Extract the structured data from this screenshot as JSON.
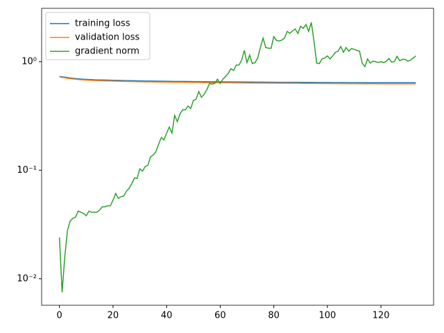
{
  "chart_data": {
    "type": "line",
    "log_y": true,
    "legend": "upper left",
    "x": [
      0,
      1,
      2,
      3,
      4,
      5,
      6,
      7,
      8,
      9,
      10,
      11,
      12,
      13,
      14,
      15,
      16,
      17,
      18,
      19,
      20,
      21,
      22,
      23,
      24,
      25,
      26,
      27,
      28,
      29,
      30,
      31,
      32,
      33,
      34,
      35,
      36,
      37,
      38,
      39,
      40,
      41,
      42,
      43,
      44,
      45,
      46,
      47,
      48,
      49,
      50,
      51,
      52,
      53,
      54,
      55,
      56,
      57,
      58,
      59,
      60,
      61,
      62,
      63,
      64,
      65,
      66,
      67,
      68,
      69,
      70,
      71,
      72,
      73,
      74,
      75,
      76,
      77,
      78,
      79,
      80,
      81,
      82,
      83,
      84,
      85,
      86,
      87,
      88,
      89,
      90,
      91,
      92,
      93,
      94,
      95,
      96,
      97,
      98,
      99,
      100,
      101,
      102,
      103,
      104,
      105,
      106,
      107,
      108,
      109,
      110,
      111,
      112,
      113,
      114,
      115,
      116,
      117,
      118,
      119,
      120,
      121,
      122,
      123,
      124,
      125,
      126,
      127,
      128,
      129,
      130,
      131,
      132,
      133
    ],
    "series": [
      {
        "name": "training loss",
        "color": "#1f77b4",
        "values": [
          0.73,
          0.725,
          0.72,
          0.714,
          0.708,
          0.703,
          0.699,
          0.695,
          0.692,
          0.689,
          0.687,
          0.685,
          0.683,
          0.681,
          0.68,
          0.679,
          0.678,
          0.677,
          0.676,
          0.675,
          0.674,
          0.673,
          0.672,
          0.671,
          0.67,
          0.669,
          0.668,
          0.668,
          0.667,
          0.666,
          0.665,
          0.665,
          0.664,
          0.663,
          0.663,
          0.662,
          0.662,
          0.661,
          0.661,
          0.66,
          0.66,
          0.659,
          0.659,
          0.658,
          0.658,
          0.657,
          0.657,
          0.657,
          0.656,
          0.656,
          0.655,
          0.655,
          0.655,
          0.654,
          0.654,
          0.654,
          0.653,
          0.653,
          0.653,
          0.652,
          0.652,
          0.652,
          0.651,
          0.651,
          0.651,
          0.65,
          0.65,
          0.65,
          0.65,
          0.649,
          0.649,
          0.649,
          0.649,
          0.648,
          0.648,
          0.648,
          0.648,
          0.647,
          0.647,
          0.647,
          0.647,
          0.646,
          0.646,
          0.646,
          0.646,
          0.646,
          0.645,
          0.645,
          0.645,
          0.645,
          0.645,
          0.644,
          0.644,
          0.644,
          0.644,
          0.644,
          0.643,
          0.643,
          0.643,
          0.643,
          0.643,
          0.643,
          0.642,
          0.642,
          0.642,
          0.642,
          0.642,
          0.642,
          0.641,
          0.641,
          0.641,
          0.641,
          0.641,
          0.641,
          0.641,
          0.64,
          0.64,
          0.64,
          0.64,
          0.64,
          0.64,
          0.64,
          0.64,
          0.64,
          0.639,
          0.639,
          0.639,
          0.639,
          0.639,
          0.639,
          0.639,
          0.639,
          0.639,
          0.639
        ]
      },
      {
        "name": "validation loss",
        "color": "#ff7f0e",
        "values": [
          0.722,
          0.716,
          0.71,
          0.703,
          0.697,
          0.692,
          0.688,
          0.684,
          0.681,
          0.678,
          0.676,
          0.674,
          0.672,
          0.67,
          0.668,
          0.667,
          0.666,
          0.665,
          0.664,
          0.663,
          0.662,
          0.661,
          0.66,
          0.659,
          0.658,
          0.657,
          0.656,
          0.656,
          0.655,
          0.654,
          0.653,
          0.653,
          0.652,
          0.651,
          0.651,
          0.65,
          0.65,
          0.649,
          0.649,
          0.648,
          0.648,
          0.647,
          0.647,
          0.646,
          0.646,
          0.645,
          0.645,
          0.644,
          0.644,
          0.643,
          0.643,
          0.643,
          0.642,
          0.642,
          0.641,
          0.641,
          0.641,
          0.64,
          0.64,
          0.639,
          0.639,
          0.639,
          0.638,
          0.638,
          0.638,
          0.637,
          0.637,
          0.637,
          0.636,
          0.636,
          0.636,
          0.635,
          0.635,
          0.635,
          0.634,
          0.634,
          0.634,
          0.634,
          0.633,
          0.633,
          0.633,
          0.633,
          0.632,
          0.632,
          0.632,
          0.632,
          0.631,
          0.631,
          0.631,
          0.631,
          0.63,
          0.63,
          0.63,
          0.63,
          0.63,
          0.629,
          0.629,
          0.629,
          0.629,
          0.629,
          0.628,
          0.628,
          0.628,
          0.628,
          0.628,
          0.628,
          0.627,
          0.627,
          0.627,
          0.627,
          0.627,
          0.627,
          0.626,
          0.626,
          0.626,
          0.626,
          0.626,
          0.626,
          0.626,
          0.625,
          0.625,
          0.625,
          0.625,
          0.625,
          0.625,
          0.625,
          0.625,
          0.624,
          0.624,
          0.624,
          0.624,
          0.624,
          0.624,
          0.624
        ]
      },
      {
        "name": "gradient norm",
        "color": "#2ca02c",
        "values": [
          0.024,
          0.0075,
          0.016,
          0.028,
          0.034,
          0.036,
          0.037,
          0.042,
          0.041,
          0.04,
          0.038,
          0.042,
          0.041,
          0.041,
          0.041,
          0.043,
          0.046,
          0.046,
          0.047,
          0.047,
          0.053,
          0.061,
          0.055,
          0.057,
          0.058,
          0.064,
          0.068,
          0.075,
          0.085,
          0.084,
          0.103,
          0.098,
          0.108,
          0.111,
          0.133,
          0.138,
          0.148,
          0.173,
          0.2,
          0.19,
          0.22,
          0.25,
          0.22,
          0.32,
          0.28,
          0.33,
          0.36,
          0.36,
          0.39,
          0.37,
          0.44,
          0.45,
          0.53,
          0.47,
          0.5,
          0.55,
          0.63,
          0.62,
          0.63,
          0.69,
          0.63,
          0.69,
          0.73,
          0.78,
          0.86,
          0.83,
          0.93,
          0.93,
          1.03,
          1.27,
          0.98,
          1.15,
          0.96,
          0.98,
          1.08,
          1.35,
          1.65,
          1.35,
          1.33,
          1.33,
          1.7,
          1.57,
          1.55,
          1.58,
          1.65,
          1.9,
          1.82,
          1.92,
          2.0,
          1.82,
          2.12,
          2.03,
          2.2,
          1.9,
          2.3,
          1.55,
          0.97,
          0.96,
          1.06,
          1.08,
          1.13,
          1.06,
          1.13,
          1.22,
          1.25,
          1.38,
          1.22,
          1.35,
          1.25,
          1.32,
          1.3,
          1.27,
          1.25,
          0.97,
          0.9,
          1.06,
          0.97,
          1.01,
          1.0,
          0.98,
          1.0,
          0.98,
          1.01,
          1.07,
          0.99,
          1.0,
          1.12,
          1.02,
          1.05,
          1.05,
          1.01,
          1.03,
          1.08,
          1.13
        ]
      }
    ],
    "xlim": [
      -6.65,
      139.65
    ],
    "xticks": [
      0,
      20,
      40,
      60,
      80,
      100,
      120
    ],
    "ylim": [
      0.0057,
      3.1
    ],
    "yticks": [
      {
        "value": 0.01,
        "label": "10⁻²"
      },
      {
        "value": 0.1,
        "label": "10⁻¹"
      },
      {
        "value": 1,
        "label": "10⁰"
      }
    ]
  }
}
